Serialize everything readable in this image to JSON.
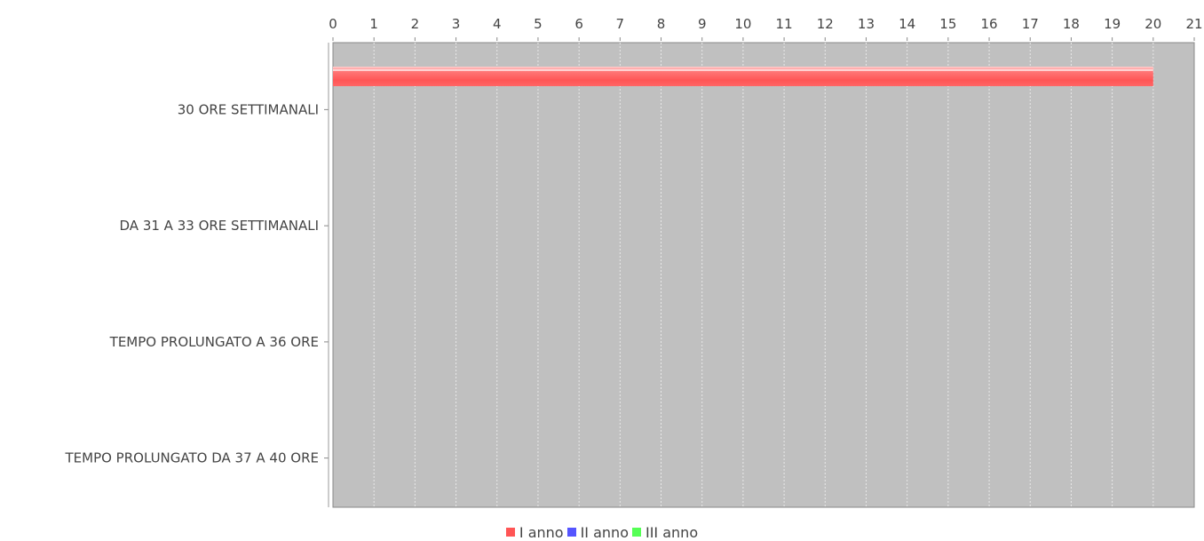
{
  "chart_data": {
    "type": "bar",
    "orientation": "horizontal",
    "categories": [
      "30 ORE SETTIMANALI",
      "DA 31 A 33 ORE SETTIMANALI",
      "TEMPO PROLUNGATO A 36 ORE",
      "TEMPO PROLUNGATO DA 37 A 40 ORE"
    ],
    "series": [
      {
        "name": "I anno",
        "color": "#ff5555",
        "values": [
          20,
          0,
          0,
          0
        ]
      },
      {
        "name": "II anno",
        "color": "#5555ff",
        "values": [
          0,
          0,
          0,
          0
        ]
      },
      {
        "name": "III anno",
        "color": "#55ff55",
        "values": [
          0,
          0,
          0,
          0
        ]
      }
    ],
    "xlim": [
      0,
      21
    ],
    "xticks": [
      "0",
      "1",
      "2",
      "3",
      "4",
      "5",
      "6",
      "7",
      "8",
      "9",
      "10",
      "11",
      "12",
      "13",
      "14",
      "15",
      "16",
      "17",
      "18",
      "19",
      "20",
      "21"
    ],
    "x_axis_position": "top",
    "grid": true,
    "legend": "bottom",
    "plot_background": "#c0c0c0"
  }
}
